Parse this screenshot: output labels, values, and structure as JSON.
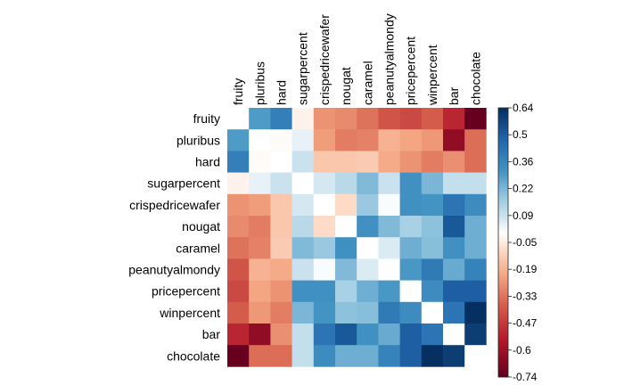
{
  "chart_data": {
    "type": "heatmap",
    "variables": [
      "fruity",
      "pluribus",
      "hard",
      "sugarpercent",
      "crispedricewafer",
      "nougat",
      "caramel",
      "peanutyalmondy",
      "pricepercent",
      "winpercent",
      "bar",
      "chocolate"
    ],
    "matrix": [
      [
        null,
        0.3,
        0.39,
        -0.03,
        -0.26,
        -0.28,
        -0.33,
        -0.4,
        -0.43,
        -0.38,
        -0.52,
        -0.74
      ],
      [
        0.3,
        null,
        -0.01,
        0.04,
        -0.24,
        -0.31,
        -0.3,
        -0.19,
        -0.22,
        -0.25,
        -0.64,
        -0.34
      ],
      [
        0.39,
        -0.01,
        null,
        0.09,
        -0.14,
        -0.14,
        -0.13,
        -0.21,
        -0.26,
        -0.31,
        -0.27,
        -0.34
      ],
      [
        -0.03,
        0.04,
        0.09,
        null,
        0.07,
        0.12,
        0.22,
        0.09,
        0.33,
        0.23,
        0.1,
        0.1
      ],
      [
        -0.26,
        -0.24,
        -0.14,
        0.07,
        null,
        -0.09,
        0.18,
        0.01,
        0.33,
        0.32,
        0.43,
        0.35
      ],
      [
        -0.28,
        -0.31,
        -0.14,
        0.12,
        -0.09,
        null,
        0.33,
        0.22,
        0.15,
        0.2,
        0.52,
        0.25
      ],
      [
        -0.33,
        -0.3,
        -0.13,
        0.22,
        0.18,
        0.33,
        null,
        0.06,
        0.25,
        0.21,
        0.33,
        0.25
      ],
      [
        -0.4,
        -0.19,
        -0.21,
        0.09,
        0.01,
        0.22,
        0.06,
        null,
        0.31,
        0.41,
        0.26,
        0.38
      ],
      [
        -0.43,
        -0.22,
        -0.26,
        0.33,
        0.33,
        0.15,
        0.25,
        0.31,
        null,
        0.35,
        0.5,
        0.5
      ],
      [
        -0.38,
        -0.25,
        -0.31,
        0.23,
        0.32,
        0.2,
        0.21,
        0.41,
        0.35,
        null,
        0.43,
        0.64
      ],
      [
        -0.52,
        -0.64,
        -0.27,
        0.1,
        0.43,
        0.52,
        0.33,
        0.26,
        0.5,
        0.43,
        null,
        0.6
      ],
      [
        -0.74,
        -0.34,
        -0.34,
        0.1,
        0.35,
        0.25,
        0.25,
        0.38,
        0.5,
        0.64,
        0.6,
        null
      ]
    ],
    "colorbar_ticks": [
      "0.64",
      "0.5",
      "0.36",
      "0.22",
      "0.09",
      "-0.05",
      "-0.19",
      "-0.33",
      "-0.47",
      "-0.6",
      "-0.74"
    ],
    "range": [
      -0.74,
      0.64
    ],
    "legend": "right",
    "colors": {
      "low": "#67001f",
      "mid": "#ffffff",
      "high": "#053061"
    }
  }
}
